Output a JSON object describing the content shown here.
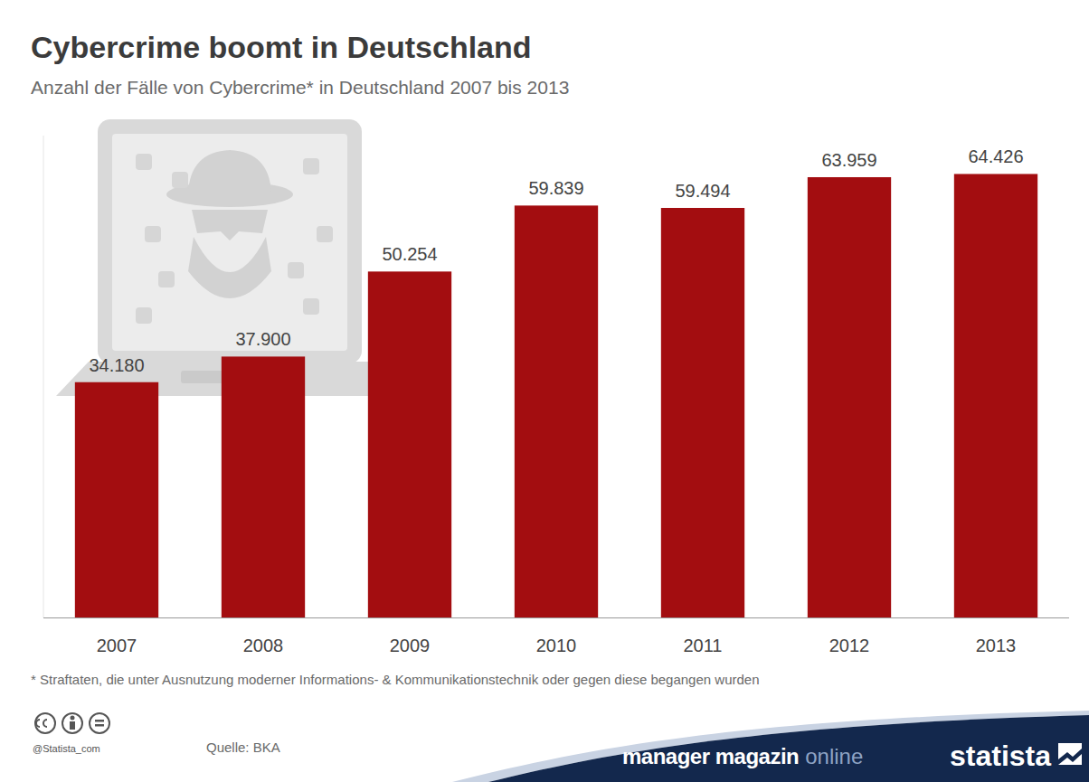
{
  "chart_data": {
    "type": "bar",
    "title": "Cybercrime boomt in Deutschland",
    "subtitle": "Anzahl der Fälle von Cybercrime* in Deutschland 2007 bis 2013",
    "categories": [
      "2007",
      "2008",
      "2009",
      "2010",
      "2011",
      "2012",
      "2013"
    ],
    "values": [
      34180,
      37900,
      50254,
      59839,
      59494,
      63959,
      64426
    ],
    "value_labels": [
      "34.180",
      "37.900",
      "50.254",
      "59.839",
      "59.494",
      "63.959",
      "64.426"
    ],
    "color": "#a30d10",
    "ylim": [
      0,
      70000
    ],
    "grid": false,
    "data_labels": true,
    "tick_labels": "x",
    "footnote": "* Straftaten, die unter Ausnutzung moderner Informations- & Kommunikationstechnik oder gegen diese begangen wurden",
    "credit": "@Statista_com",
    "source": "Quelle: BKA",
    "publisher": {
      "name": "manager magazin",
      "suffix": "online"
    },
    "brand": "statista"
  }
}
